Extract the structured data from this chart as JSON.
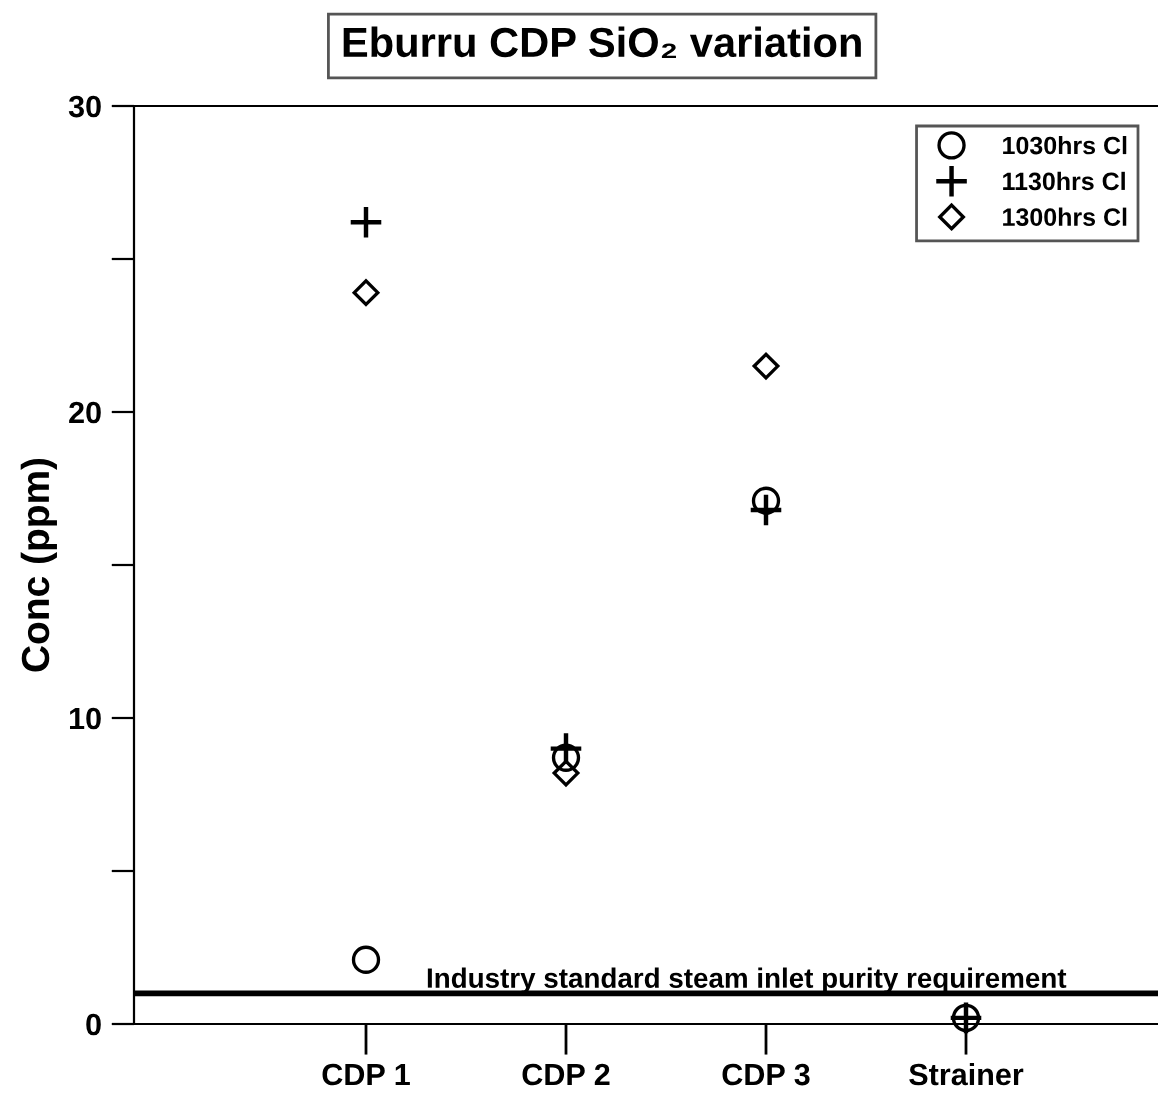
{
  "chart_data": {
    "type": "scatter",
    "title": "Eburru CDP SiO₂ variation",
    "ylabel": "Conc (ppm)",
    "categories": [
      "CDP 1",
      "CDP 2",
      "CDP 3",
      "Strainer"
    ],
    "series": [
      {
        "name": "1030hrs Cl",
        "color": "#000000",
        "marker": "circle",
        "values": [
          2.1,
          8.7,
          17.1,
          0.2
        ]
      },
      {
        "name": "1130hrs Cl",
        "color": "#000000",
        "marker": "cross",
        "values": [
          26.2,
          9.0,
          16.8,
          0.2
        ]
      },
      {
        "name": "1300hrs Cl",
        "color": "#000000",
        "marker": "diamond",
        "values": [
          23.9,
          8.2,
          21.5,
          null
        ]
      }
    ],
    "ylim": [
      0,
      30
    ],
    "yticks": [
      0,
      {
        "value": 5,
        "label": null
      },
      10,
      {
        "value": 15,
        "label": null
      },
      20,
      {
        "value": 25,
        "label": null
      },
      30
    ],
    "ref_lines": [
      {
        "axis": "y",
        "value": 1,
        "label": "Industry standard steam inlet purity requirement",
        "color": "#000000"
      }
    ],
    "grid": false,
    "legend": "top right"
  }
}
